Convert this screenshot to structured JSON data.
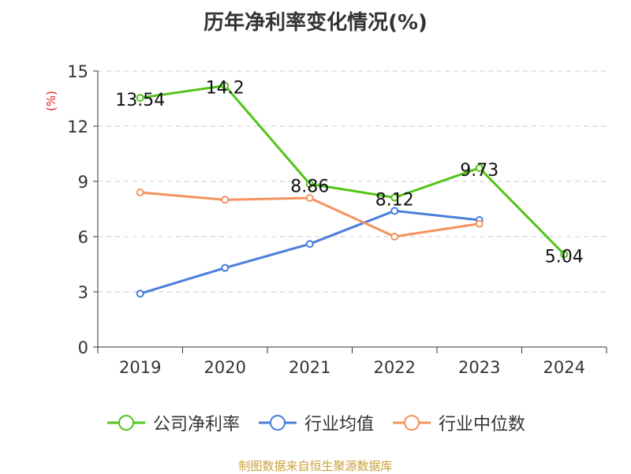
{
  "chart_data": {
    "type": "line",
    "title": "历年净利率变化情况(%)",
    "ylabel": "(%)",
    "categories": [
      "2019",
      "2020",
      "2021",
      "2022",
      "2023",
      "2024"
    ],
    "ylim": [
      0,
      15
    ],
    "yticks": [
      0,
      3,
      6,
      9,
      12,
      15
    ],
    "grid": true,
    "legend_position": "bottom",
    "series": [
      {
        "name": "公司净利率",
        "color": "#52c41a",
        "values": [
          13.54,
          14.2,
          8.86,
          8.12,
          9.73,
          5.04
        ],
        "labels": [
          "13.54",
          "14.2",
          "8.86",
          "8.12",
          "9.73",
          "5.04"
        ]
      },
      {
        "name": "行业均值",
        "color": "#4a7fdc",
        "values": [
          2.9,
          4.3,
          5.6,
          7.4,
          6.9,
          null
        ]
      },
      {
        "name": "行业中位数",
        "color": "#f4935f",
        "values": [
          8.4,
          8.0,
          8.1,
          6.0,
          6.7,
          null
        ]
      }
    ]
  },
  "footer": {
    "source": "制图数据来自恒生聚源数据库"
  }
}
